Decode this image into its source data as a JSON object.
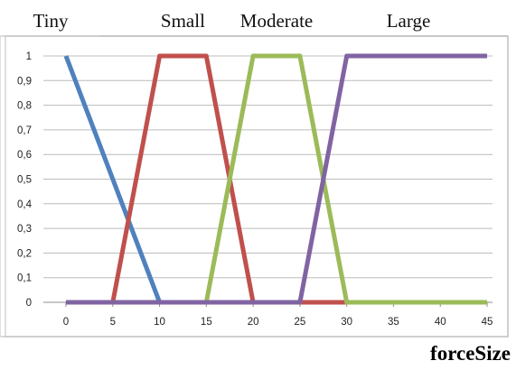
{
  "chart_data": {
    "type": "line",
    "title": "",
    "xlabel": "forceSize",
    "ylabel": "",
    "xlim": [
      0,
      45
    ],
    "ylim": [
      0,
      1
    ],
    "x_ticks": [
      "0",
      "5",
      "10",
      "15",
      "20",
      "25",
      "30",
      "35",
      "40",
      "45"
    ],
    "y_ticks": [
      "0",
      "0,1",
      "0,2",
      "0,3",
      "0,4",
      "0,5",
      "0,6",
      "0,7",
      "0,8",
      "0,9",
      "1"
    ],
    "grid": "horizontal",
    "legend": "above-plot-inline",
    "series": [
      {
        "name": "Tiny",
        "color": "#4f81bd",
        "points": [
          [
            0,
            1
          ],
          [
            10,
            0
          ],
          [
            45,
            0
          ]
        ]
      },
      {
        "name": "Small",
        "color": "#c0504d",
        "points": [
          [
            0,
            0
          ],
          [
            5,
            0
          ],
          [
            10,
            1
          ],
          [
            15,
            1
          ],
          [
            20,
            0
          ],
          [
            45,
            0
          ]
        ]
      },
      {
        "name": "Moderate",
        "color": "#9bbb59",
        "points": [
          [
            0,
            0
          ],
          [
            15,
            0
          ],
          [
            20,
            1
          ],
          [
            25,
            1
          ],
          [
            30,
            0
          ],
          [
            45,
            0
          ]
        ]
      },
      {
        "name": "Large",
        "color": "#8064a2",
        "points": [
          [
            0,
            0
          ],
          [
            25,
            0
          ],
          [
            30,
            1
          ],
          [
            45,
            1
          ]
        ]
      }
    ]
  }
}
